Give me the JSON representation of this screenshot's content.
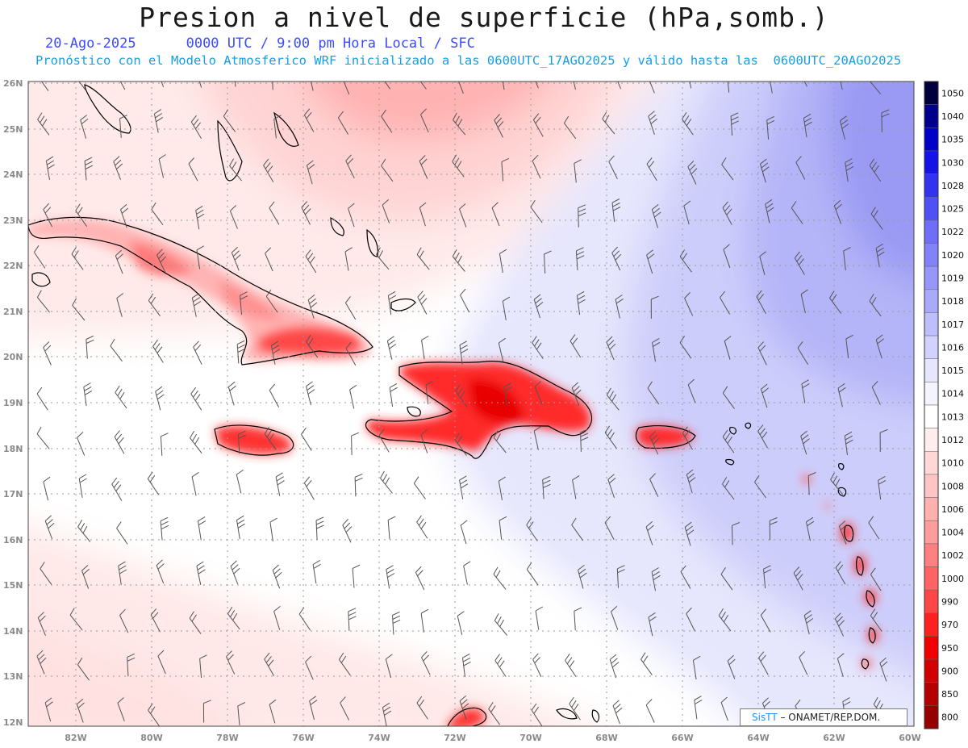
{
  "header": {
    "title": "Presion a nivel de superficie (hPa,somb.)",
    "date": "20-Ago-2025",
    "time_info": "0000 UTC / 9:00 pm Hora Local / SFC",
    "description": "Pronóstico con el Modelo Atmosferico WRF inicializado a las 0600UTC_17AGO2025 y válido hasta las  0600UTC_20AGO2025"
  },
  "map": {
    "lat_labels": [
      "26N",
      "25N",
      "24N",
      "23N",
      "22N",
      "21N",
      "20N",
      "19N",
      "18N",
      "17N",
      "16N",
      "15N",
      "14N",
      "13N",
      "12N"
    ],
    "lon_labels": [
      "82W",
      "80W",
      "78W",
      "76W",
      "74W",
      "72W",
      "70W",
      "68W",
      "66W",
      "64W",
      "62W",
      "60W"
    ],
    "wind_barbs": "plotted"
  },
  "colorbar": {
    "levels": [
      "1050",
      "1040",
      "1035",
      "1030",
      "1028",
      "1025",
      "1022",
      "1020",
      "1019",
      "1018",
      "1017",
      "1016",
      "1015",
      "1014",
      "1013",
      "1012",
      "1010",
      "1008",
      "1006",
      "1004",
      "1002",
      "1000",
      "990",
      "970",
      "950",
      "900",
      "850",
      "800"
    ],
    "colors": [
      "#00003c",
      "#00008c",
      "#0000c8",
      "#1414e6",
      "#3232f0",
      "#5050f5",
      "#6e6ef8",
      "#8282fa",
      "#9696fb",
      "#aaaafc",
      "#bebefd",
      "#d2d2fe",
      "#e6e6fe",
      "#f4f4ff",
      "#ffffff",
      "#ffecec",
      "#ffd8d8",
      "#ffc4c4",
      "#ffb0b0",
      "#ff9c9c",
      "#ff8080",
      "#ff6464",
      "#ff4646",
      "#ff2020",
      "#f00000",
      "#d20000",
      "#b40000",
      "#960000"
    ]
  },
  "credit": {
    "brand": "SisTT",
    "text": "– ONAMET/REP.DOM."
  }
}
